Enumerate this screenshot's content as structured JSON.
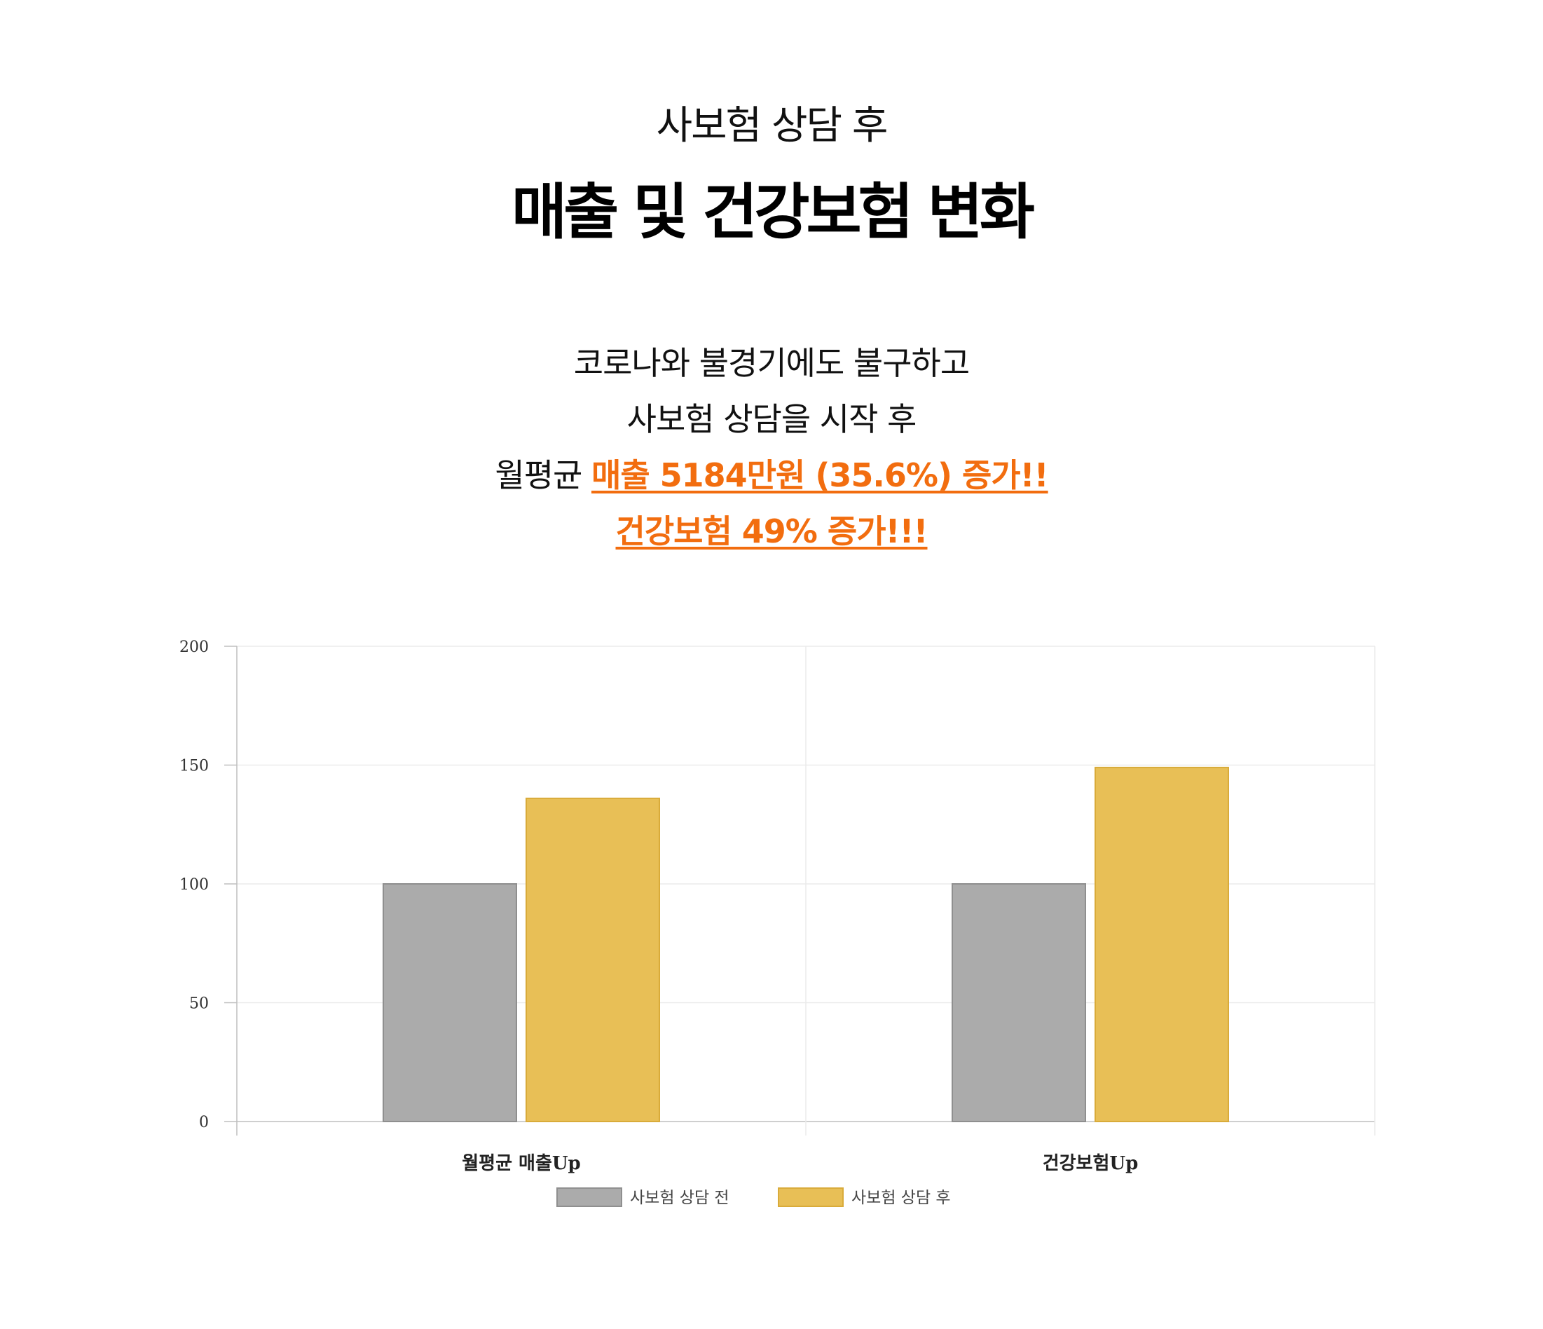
{
  "header": {
    "subtitle": "사보험 상담 후",
    "title": "매출 및 건강보험 변화"
  },
  "description": {
    "line1": "코로나와 불경기에도 불구하고",
    "line2": "사보험 상담을 시작 후",
    "line3_prefix": "월평균 ",
    "line3_highlight": "매출 5184만원 (35.6%) 증가!!",
    "line4_highlight": "건강보험 49% 증가!!!"
  },
  "colors": {
    "highlight": "#f26d0f",
    "before": "#ababab",
    "after": "#e8bf56"
  },
  "chart_data": {
    "type": "bar",
    "categories": [
      "월평균 매출Up",
      "건강보험Up"
    ],
    "series": [
      {
        "name": "사보험 상담 전",
        "values": [
          100,
          100
        ],
        "color": "#ababab"
      },
      {
        "name": "사보험 상담 후",
        "values": [
          136,
          149
        ],
        "color": "#e8bf56"
      }
    ],
    "ylim": [
      0,
      200
    ],
    "yticks": [
      0,
      50,
      100,
      150,
      200
    ],
    "grid": true,
    "legend_position": "bottom-center"
  }
}
